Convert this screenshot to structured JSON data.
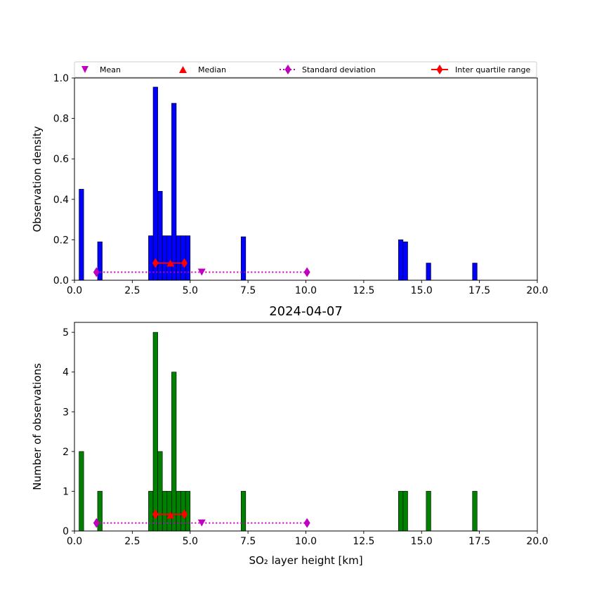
{
  "legend": {
    "mean": "Mean",
    "median": "Median",
    "std": "Standard deviation",
    "iqr": "Inter quartile range",
    "colors": {
      "mean": "#bf00bf",
      "median": "#ff0000",
      "std": "#bf00bf",
      "iqr": "#ff0000"
    }
  },
  "chart_data": [
    {
      "type": "bar",
      "title": "",
      "xlabel": "",
      "ylabel": "Observation density",
      "xlim": [
        0,
        20
      ],
      "ylim": [
        0,
        1.0
      ],
      "xticks": [
        "0.0",
        "2.5",
        "5.0",
        "7.5",
        "10.0",
        "12.5",
        "15.0",
        "17.5",
        "20.0"
      ],
      "yticks": [
        "0.0",
        "0.2",
        "0.4",
        "0.6",
        "0.8",
        "1.0"
      ],
      "bar_color": "#0000ff",
      "bars": [
        {
          "x0": 0.2,
          "x1": 0.4,
          "value": 0.45
        },
        {
          "x0": 1.0,
          "x1": 1.2,
          "value": 0.19
        },
        {
          "x0": 3.2,
          "x1": 3.4,
          "value": 0.22
        },
        {
          "x0": 3.4,
          "x1": 3.6,
          "value": 0.955
        },
        {
          "x0": 3.6,
          "x1": 3.8,
          "value": 0.44
        },
        {
          "x0": 3.8,
          "x1": 4.0,
          "value": 0.22
        },
        {
          "x0": 4.0,
          "x1": 4.2,
          "value": 0.22
        },
        {
          "x0": 4.2,
          "x1": 4.4,
          "value": 0.875
        },
        {
          "x0": 4.4,
          "x1": 4.6,
          "value": 0.22
        },
        {
          "x0": 4.6,
          "x1": 4.8,
          "value": 0.22
        },
        {
          "x0": 4.8,
          "x1": 5.0,
          "value": 0.22
        },
        {
          "x0": 7.2,
          "x1": 7.4,
          "value": 0.215
        },
        {
          "x0": 14.0,
          "x1": 14.2,
          "value": 0.2
        },
        {
          "x0": 14.2,
          "x1": 14.4,
          "value": 0.19
        },
        {
          "x0": 15.2,
          "x1": 15.4,
          "value": 0.085
        },
        {
          "x0": 17.2,
          "x1": 17.4,
          "value": 0.085
        }
      ],
      "stats": {
        "mean": {
          "x": 5.5,
          "y": 0.04
        },
        "median": {
          "x": 4.15,
          "y": 0.085
        },
        "std": {
          "x": [
            0.95,
            10.05
          ],
          "y": 0.04
        },
        "iqr": {
          "x": [
            3.5,
            4.75
          ],
          "y": 0.085
        }
      }
    },
    {
      "type": "bar",
      "title": "2024-04-07",
      "xlabel": "SO₂ layer height [km]",
      "ylabel": "Number of observations",
      "xlim": [
        0,
        20
      ],
      "ylim": [
        0,
        5.25
      ],
      "xticks": [
        "0.0",
        "2.5",
        "5.0",
        "7.5",
        "10.0",
        "12.5",
        "15.0",
        "17.5",
        "20.0"
      ],
      "yticks": [
        "0",
        "1",
        "2",
        "3",
        "4",
        "5"
      ],
      "bar_color": "#008000",
      "bars": [
        {
          "x0": 0.2,
          "x1": 0.4,
          "value": 2
        },
        {
          "x0": 1.0,
          "x1": 1.2,
          "value": 1
        },
        {
          "x0": 3.2,
          "x1": 3.4,
          "value": 1
        },
        {
          "x0": 3.4,
          "x1": 3.6,
          "value": 5
        },
        {
          "x0": 3.6,
          "x1": 3.8,
          "value": 2
        },
        {
          "x0": 3.8,
          "x1": 4.0,
          "value": 1
        },
        {
          "x0": 4.0,
          "x1": 4.2,
          "value": 1
        },
        {
          "x0": 4.2,
          "x1": 4.4,
          "value": 4
        },
        {
          "x0": 4.4,
          "x1": 4.6,
          "value": 1
        },
        {
          "x0": 4.6,
          "x1": 4.8,
          "value": 1
        },
        {
          "x0": 4.8,
          "x1": 5.0,
          "value": 1
        },
        {
          "x0": 7.2,
          "x1": 7.4,
          "value": 1
        },
        {
          "x0": 14.0,
          "x1": 14.2,
          "value": 1
        },
        {
          "x0": 14.2,
          "x1": 14.4,
          "value": 1
        },
        {
          "x0": 15.2,
          "x1": 15.4,
          "value": 1
        },
        {
          "x0": 17.2,
          "x1": 17.4,
          "value": 1
        }
      ],
      "stats": {
        "mean": {
          "x": 5.5,
          "y": 0.2
        },
        "median": {
          "x": 4.15,
          "y": 0.4
        },
        "std": {
          "x": [
            0.95,
            10.05
          ],
          "y": 0.2
        },
        "iqr": {
          "x": [
            3.5,
            4.75
          ],
          "y": 0.42
        }
      }
    }
  ]
}
